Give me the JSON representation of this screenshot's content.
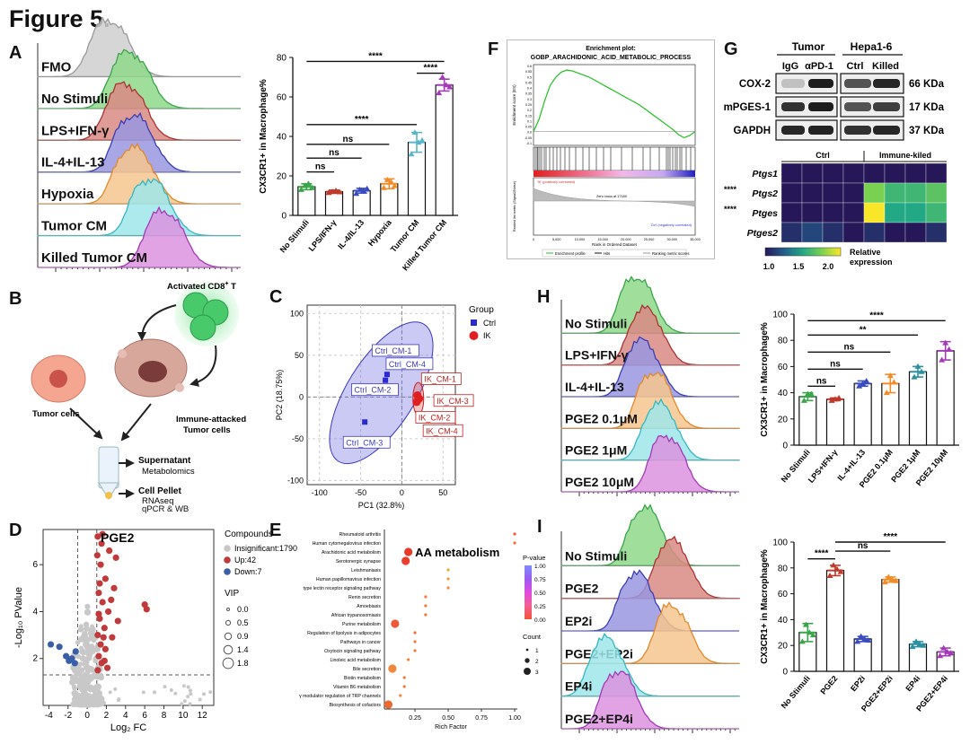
{
  "figure_title": "Figure 5.",
  "panel_letters": [
    "A",
    "B",
    "C",
    "D",
    "E",
    "F",
    "G",
    "H",
    "I"
  ],
  "colors": {
    "gray": "#bdbdbd",
    "green": "#5dc35a",
    "red": "#c0504d",
    "blue": "#6a66c8",
    "orange": "#f2a14b",
    "cyan": "#5ed2d6",
    "purple": "#c05ac8",
    "teal": "#3aa6a8",
    "pink": "#e07ad8"
  },
  "panel_a": {
    "histogram_labels": [
      "FMO",
      "No Stimuli",
      "LPS+IFN-γ",
      "IL-4+IL-13",
      "Hypoxia",
      "Tumor CM",
      "Killed Tumor CM"
    ]
  },
  "panel_h": {
    "histogram_labels": [
      "No Stimuli",
      "LPS+IFN-γ",
      "IL-4+IL-13",
      "PGE2 0.1μM",
      "PGE2 1μM",
      "PGE2 10μM"
    ]
  },
  "panel_i": {
    "histogram_labels": [
      "No Stimuli",
      "PGE2",
      "EP2i",
      "PGE2+EP2i",
      "EP4i",
      "PGE2+EP4i"
    ]
  },
  "panel_b": {
    "labels": [
      "Activated CD8",
      "+",
      " T",
      "Tumor cells",
      "Immune-attacked",
      "Tumor cells",
      "Supernatant",
      "Metabolomics",
      "Cell Pellet",
      "RNAseq",
      "qPCR & WB"
    ]
  },
  "panel_f": {
    "title": "Enrichment plot:",
    "subtitle": "GOBP_ARACHIDONIC_ACID_METABOLIC_PROCESS",
    "ylabel_top": "Enrichment score (ES)",
    "ylabel_bottom": "Ranked list metric (Signal2Noise)",
    "xlabel": "Rank in Ordered Dataset",
    "pos_label": "'IK' (positively correlated)",
    "neg_label": "'Ctrl' (negatively correlated)",
    "zero_label": "Zero cross at 17189",
    "legend": [
      "Enrichment profile",
      "Hits",
      "Ranking metric scores"
    ],
    "yticks_top": [
      "0.6",
      "0.55",
      "0.5",
      "0.45",
      "0.4",
      "0.35",
      "0.3",
      "0.25",
      "0.2",
      "0.15",
      "0.1",
      "0.05",
      "0.0",
      "-0.05",
      "-0.1"
    ],
    "xticks": [
      "0",
      "5,000",
      "10,000",
      "15,000",
      "20,000",
      "25,000",
      "30,000",
      "35,000"
    ]
  },
  "panel_g": {
    "headers": [
      "Tumor",
      "Hepa1-6"
    ],
    "lanes": [
      "IgG",
      "αPD-1",
      "Ctrl",
      "Killed"
    ],
    "proteins": [
      "COX-2",
      "mPGES-1",
      "GAPDH"
    ],
    "sizes": [
      "66 KDa",
      "17 KDa",
      "37 KDa"
    ],
    "heatmap_groups": [
      "Ctrl",
      "Immune-kiled"
    ],
    "genes": [
      "Ptgs1",
      "Ptgs2",
      "Ptges",
      "Ptges2"
    ],
    "gene_sig": [
      "",
      "****",
      "****",
      ""
    ],
    "heat_values": [
      [
        1.0,
        1.0,
        1.0,
        1.0,
        1.0,
        1.0,
        1.0,
        1.0
      ],
      [
        1.0,
        1.0,
        1.0,
        1.0,
        1.9,
        1.7,
        1.7,
        1.8
      ],
      [
        1.0,
        1.0,
        1.0,
        1.0,
        2.2,
        1.6,
        1.6,
        1.7
      ],
      [
        1.1,
        1.2,
        1.1,
        1.0,
        1.1,
        1.0,
        1.0,
        1.1
      ]
    ],
    "colorbar_ticks": [
      "1.0",
      "1.5",
      "2.0"
    ],
    "colorbar_label": "Relative",
    "colorbar_label2": "expression"
  },
  "panel_c": {
    "xlabel": "PC1 (32.8%)",
    "ylabel": "PC2 (18.75%)",
    "legend_title": "Group",
    "groups": [
      "Ctrl",
      "IK"
    ],
    "xticks": [
      "-100",
      "-50",
      "0",
      "50"
    ],
    "yticks": [
      "-100",
      "-50",
      "0",
      "50",
      "100"
    ],
    "xlim": [
      -115,
      65
    ],
    "ylim": [
      -105,
      110
    ],
    "points_ctrl": [
      {
        "label": "Ctrl_CM-1",
        "x": -18,
        "y": 27
      },
      {
        "label": "Ctrl_CM-4",
        "x": -8,
        "y": 10
      },
      {
        "label": "Ctrl_CM-2",
        "x": -20,
        "y": 20
      },
      {
        "label": "Ctrl_CM-3",
        "x": -45,
        "y": -30
      }
    ],
    "points_ik": [
      {
        "label": "IK_CM-1",
        "x": 19,
        "y": 2
      },
      {
        "label": "IK_CM-3",
        "x": 20,
        "y": -3
      },
      {
        "label": "IK_CM-2",
        "x": 18,
        "y": -6
      },
      {
        "label": "IK_CM-4",
        "x": 21,
        "y": -2
      }
    ]
  },
  "panel_d": {
    "highlight": "PGE2",
    "xlabel": "Log₂ FC",
    "ylabel": "-Log₁₀ PValue",
    "xticks": [
      "-4",
      "-2",
      "0",
      "2",
      "4",
      "6",
      "8",
      "10",
      "12"
    ],
    "yticks": [
      "2",
      "4",
      "6"
    ],
    "legend_title": "Compounds",
    "legend": [
      "Insignificant:1790",
      "Up:42",
      "Down:7"
    ],
    "vip_title": "VIP",
    "vip_values": [
      "0.0",
      "0.5",
      "0.9",
      "1.4",
      "1.8"
    ]
  },
  "panel_e": {
    "highlight": "AA metabolism",
    "xlabel": "Rich Factor",
    "xticks": [
      "0.25",
      "0.50",
      "0.75",
      "1.00"
    ],
    "pathways": [
      "Rheumatoid arthritis",
      "Human cytomegalovirus infection",
      "Arachidonic acid metabolism",
      "Serotonergic synapse",
      "Leishmaniasis",
      "Human papillomavirus infection",
      "type lectin receptor signaling pathway",
      "Renin secretion",
      "Amoebiasis",
      "African trypanosomiasis",
      "Purine metabolism",
      "Regulation of lipolysis in adipocytes",
      "Pathways in cancer",
      "Oxytocin signaling pathway",
      "Linoleic acid metabolism",
      "Bile secretion",
      "Biotin metabolism",
      "Vitamin B6 metabolism",
      "γ modulator regulation of TRP channels",
      "Biosynthesis of cofactors"
    ],
    "rich": [
      1.0,
      1.0,
      0.2,
      0.18,
      0.5,
      0.5,
      0.5,
      0.33,
      0.33,
      0.33,
      0.1,
      0.25,
      0.25,
      0.25,
      0.2,
      0.08,
      0.17,
      0.17,
      0.14,
      0.05
    ],
    "pvalue_title": "P-value",
    "pvalue_ticks": [
      "1.00",
      "0.75",
      "0.50",
      "0.25",
      "0.00"
    ],
    "count_title": "Count",
    "count_ticks": [
      "1",
      "2",
      "3"
    ]
  },
  "chart_data": [
    {
      "type": "bar",
      "panel": "A",
      "ylabel": "CX3CR1+ in Macrophage%",
      "ylim": [
        0,
        80
      ],
      "yticks": [
        "0",
        "20",
        "40",
        "60",
        "80"
      ],
      "categories": [
        "No Stimuli",
        "LPS/IFN-γ",
        "IL-4/IL-13",
        "Hypoxia",
        "Tumor CM",
        "Killed Tumor CM"
      ],
      "values": [
        14.5,
        12,
        12.5,
        16,
        37,
        66
      ],
      "points": [
        [
          13,
          15,
          16,
          14
        ],
        [
          11.5,
          12,
          12.5,
          11.8
        ],
        [
          11,
          13,
          12.5,
          13.5
        ],
        [
          14,
          18,
          17,
          15
        ],
        [
          31,
          42,
          37,
          38
        ],
        [
          62,
          70,
          66,
          65
        ]
      ],
      "errors": [
        1.5,
        0.8,
        1.2,
        2.5,
        5,
        3
      ],
      "colors": [
        "#3aa54a",
        "#c0392b",
        "#3b4cc0",
        "#f28c28",
        "#5bb5c9",
        "#a23bb5"
      ],
      "sig": [
        {
          "from": 0,
          "to": 1,
          "label": "ns",
          "y": 22
        },
        {
          "from": 0,
          "to": 2,
          "label": "ns",
          "y": 29
        },
        {
          "from": 0,
          "to": 3,
          "label": "ns",
          "y": 36
        },
        {
          "from": 0,
          "to": 4,
          "label": "****",
          "y": 46
        },
        {
          "from": 4,
          "to": 5,
          "label": "****",
          "y": 72
        },
        {
          "from": 0,
          "to": 5,
          "label": "****",
          "y": 78
        }
      ]
    },
    {
      "type": "bar",
      "panel": "H",
      "ylabel": "CX3CR1+ in Macrophage%",
      "ylim": [
        0,
        100
      ],
      "yticks": [
        "0",
        "20",
        "40",
        "60",
        "80",
        "100"
      ],
      "categories": [
        "No Stimuli",
        "LPS+IFN-γ",
        "IL-4+IL-13",
        "PGE2 0.1μM",
        "PGE2 1μM",
        "PGE2 10μM"
      ],
      "values": [
        37,
        35,
        47,
        47,
        56,
        72
      ],
      "points": [
        [
          34,
          39,
          39
        ],
        [
          34,
          35,
          36
        ],
        [
          45,
          47,
          49
        ],
        [
          40,
          53,
          48
        ],
        [
          52,
          60,
          56
        ],
        [
          65,
          78,
          73
        ]
      ],
      "errors": [
        3,
        1,
        2,
        7,
        4,
        7
      ],
      "colors": [
        "#3aa54a",
        "#c0392b",
        "#3b4cc0",
        "#f28c28",
        "#2a8fa0",
        "#a23bb5"
      ],
      "sig": [
        {
          "from": 0,
          "to": 1,
          "label": "ns",
          "y": 45
        },
        {
          "from": 0,
          "to": 2,
          "label": "ns",
          "y": 58
        },
        {
          "from": 0,
          "to": 3,
          "label": "ns",
          "y": 71
        },
        {
          "from": 0,
          "to": 4,
          "label": "**",
          "y": 84
        },
        {
          "from": 0,
          "to": 5,
          "label": "****",
          "y": 95
        }
      ]
    },
    {
      "type": "bar",
      "panel": "I",
      "ylabel": "CX3CR1+ in Macrophage%",
      "ylim": [
        0,
        100
      ],
      "yticks": [
        "0",
        "20",
        "40",
        "60",
        "80",
        "100"
      ],
      "categories": [
        "No Stimuli",
        "PGE2",
        "EP2i",
        "PGE2+EP2i",
        "EP4i",
        "PGE2+EP4i"
      ],
      "values": [
        30,
        78,
        25,
        71,
        21,
        15
      ],
      "points": [
        [
          23,
          36,
          30,
          28
        ],
        [
          74,
          82,
          79,
          77
        ],
        [
          23,
          27,
          25,
          24
        ],
        [
          69,
          73,
          71,
          70
        ],
        [
          19,
          23,
          21,
          20
        ],
        [
          12,
          18,
          15,
          14
        ]
      ],
      "errors": [
        7,
        4,
        2,
        2,
        2,
        3
      ],
      "colors": [
        "#3aa54a",
        "#c0392b",
        "#3b4cc0",
        "#f28c28",
        "#2a8fa0",
        "#a23bb5"
      ],
      "sig": [
        {
          "from": 0,
          "to": 1,
          "label": "****",
          "y": 87
        },
        {
          "from": 1,
          "to": 3,
          "label": "ns",
          "y": 93
        },
        {
          "from": 1,
          "to": 5,
          "label": "****",
          "y": 100
        }
      ]
    }
  ]
}
